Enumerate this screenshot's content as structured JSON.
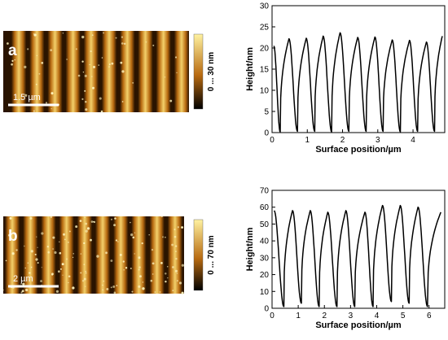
{
  "figure_a": {
    "panel_label": "a",
    "scale_bar_label": "1.5 µm",
    "colorbar_label": "0 ... 30 nm",
    "colors": {
      "dark": "#2a1400",
      "mid": "#b86a10",
      "light": "#f3d06a"
    }
  },
  "figure_b": {
    "panel_label": "b",
    "scale_bar_label": "2 µm",
    "colorbar_label": "0 ... 70 nm",
    "colors": {
      "dark": "#2a1400",
      "mid": "#b86a10",
      "light": "#f3d06a"
    }
  },
  "chart_data": [
    {
      "type": "line",
      "xlabel": "Surface position/µm",
      "ylabel": "Height/nm",
      "xlim": [
        0,
        4.9
      ],
      "ylim": [
        0,
        30
      ],
      "xticks": [
        0,
        1,
        2,
        3,
        4
      ],
      "yticks": [
        0,
        5,
        10,
        15,
        20,
        25,
        30
      ],
      "peaks": [
        {
          "x": 0.05,
          "y": 20.5
        },
        {
          "x": 0.48,
          "y": 22.2
        },
        {
          "x": 0.97,
          "y": 22.3
        },
        {
          "x": 1.45,
          "y": 22.8
        },
        {
          "x": 1.93,
          "y": 23.6
        },
        {
          "x": 2.43,
          "y": 22.5
        },
        {
          "x": 2.92,
          "y": 22.6
        },
        {
          "x": 3.41,
          "y": 21.9
        },
        {
          "x": 3.9,
          "y": 21.8
        },
        {
          "x": 4.38,
          "y": 21.4
        },
        {
          "x": 4.83,
          "y": 22.8
        }
      ],
      "valleys": [
        {
          "x": 0.23,
          "y": 0.2
        },
        {
          "x": 0.72,
          "y": 0.3
        },
        {
          "x": 1.21,
          "y": 0.3
        },
        {
          "x": 1.69,
          "y": 0.2
        },
        {
          "x": 2.18,
          "y": 0.3
        },
        {
          "x": 2.67,
          "y": 0.3
        },
        {
          "x": 3.15,
          "y": 0.3
        },
        {
          "x": 3.64,
          "y": 0.2
        },
        {
          "x": 4.13,
          "y": 0.3
        },
        {
          "x": 4.61,
          "y": 0.3
        }
      ]
    },
    {
      "type": "line",
      "xlabel": "Surface position/µm",
      "ylabel": "Height/nm",
      "xlim": [
        0,
        6.6
      ],
      "ylim": [
        0,
        70
      ],
      "xticks": [
        0,
        1,
        2,
        3,
        4,
        5,
        6
      ],
      "yticks": [
        0,
        10,
        20,
        30,
        40,
        50,
        60,
        70
      ],
      "peaks": [
        {
          "x": 0.08,
          "y": 58
        },
        {
          "x": 0.78,
          "y": 58
        },
        {
          "x": 1.46,
          "y": 58
        },
        {
          "x": 2.13,
          "y": 57
        },
        {
          "x": 2.82,
          "y": 58
        },
        {
          "x": 3.55,
          "y": 57
        },
        {
          "x": 4.22,
          "y": 61
        },
        {
          "x": 4.9,
          "y": 61
        },
        {
          "x": 5.58,
          "y": 60
        },
        {
          "x": 6.45,
          "y": 57
        }
      ],
      "valleys": [
        {
          "x": 0.45,
          "y": 1
        },
        {
          "x": 1.12,
          "y": 3
        },
        {
          "x": 1.8,
          "y": 1
        },
        {
          "x": 2.48,
          "y": 1
        },
        {
          "x": 3.16,
          "y": 1
        },
        {
          "x": 3.86,
          "y": 1
        },
        {
          "x": 4.56,
          "y": 4
        },
        {
          "x": 5.24,
          "y": 3
        },
        {
          "x": 5.94,
          "y": 1
        }
      ]
    }
  ]
}
